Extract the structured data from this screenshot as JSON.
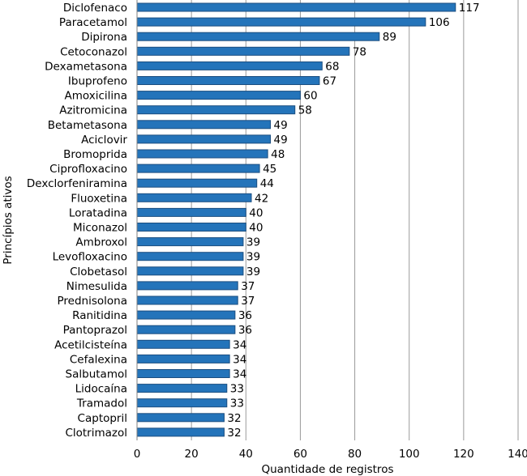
{
  "chart_data": {
    "type": "bar",
    "orientation": "horizontal",
    "categories": [
      "Diclofenaco",
      "Paracetamol",
      "Dipirona",
      "Cetoconazol",
      "Dexametasona",
      "Ibuprofeno",
      "Amoxicilina",
      "Azitromicina",
      "Betametasona",
      "Aciclovir",
      "Bromoprida",
      "Ciprofloxacino",
      "Dexclorfeniramina",
      "Fluoxetina",
      "Loratadina",
      "Miconazol",
      "Ambroxol",
      "Levofloxacino",
      "Clobetasol",
      "Nimesulida",
      "Prednisolona",
      "Ranitidina",
      "Pantoprazol",
      "Acetilcisteína",
      "Cefalexina",
      "Salbutamol",
      "Lidocaína",
      "Tramadol",
      "Captopril",
      "Clotrimazol"
    ],
    "values": [
      117,
      106,
      89,
      78,
      68,
      67,
      60,
      58,
      49,
      49,
      48,
      45,
      44,
      42,
      40,
      40,
      39,
      39,
      39,
      37,
      37,
      36,
      36,
      34,
      34,
      34,
      33,
      33,
      32,
      32
    ],
    "title": "",
    "xlabel": "Quantidade de registros",
    "ylabel": "Princípios ativos",
    "xlim": [
      0,
      140
    ],
    "xticks": [
      0,
      20,
      40,
      60,
      80,
      100,
      120,
      140
    ],
    "grid": true,
    "bar_color": "#2474ba"
  }
}
